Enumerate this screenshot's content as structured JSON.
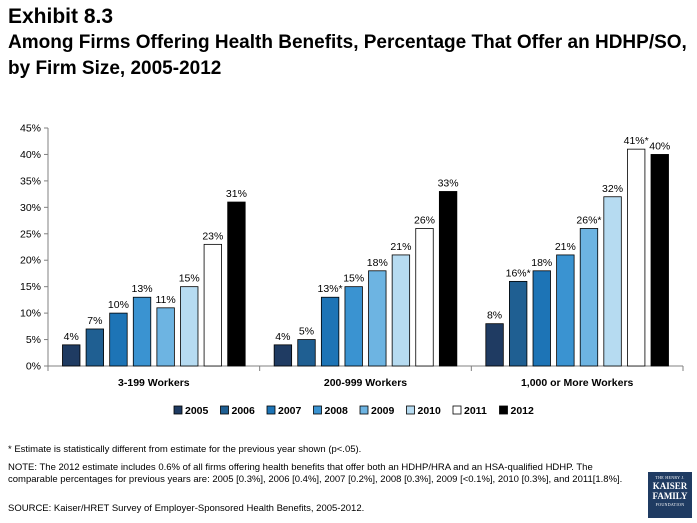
{
  "header": {
    "exhibit": "Exhibit 8.3",
    "title": "Among Firms Offering Health Benefits, Percentage That Offer an HDHP/SO, by Firm Size, 2005-2012"
  },
  "colors": {
    "2005": "#1f3b62",
    "2006": "#1f5f92",
    "2007": "#1d74b6",
    "2008": "#3a93d1",
    "2009": "#6db4e2",
    "2010": "#b6dbf1",
    "2011": "#ffffff",
    "2012": "#000000"
  },
  "chart_data": {
    "type": "bar",
    "categories": [
      "3-199 Workers",
      "200-999 Workers",
      "1,000 or More Workers"
    ],
    "series": [
      {
        "name": "2005",
        "values": [
          4,
          4,
          8
        ],
        "labels": [
          "4%",
          "4%",
          "8%"
        ]
      },
      {
        "name": "2006",
        "values": [
          7,
          5,
          16
        ],
        "labels": [
          "7%",
          "5%",
          "16%*"
        ]
      },
      {
        "name": "2007",
        "values": [
          10,
          13,
          18
        ],
        "labels": [
          "10%",
          "13%*",
          "18%"
        ]
      },
      {
        "name": "2008",
        "values": [
          13,
          15,
          21
        ],
        "labels": [
          "13%",
          "15%",
          "21%"
        ]
      },
      {
        "name": "2009",
        "values": [
          11,
          18,
          26
        ],
        "labels": [
          "11%",
          "18%",
          "26%*"
        ]
      },
      {
        "name": "2010",
        "values": [
          15,
          21,
          32
        ],
        "labels": [
          "15%",
          "21%",
          "32%"
        ]
      },
      {
        "name": "2011",
        "values": [
          23,
          26,
          41
        ],
        "labels": [
          "23%",
          "26%",
          "41%*"
        ]
      },
      {
        "name": "2012",
        "values": [
          31,
          33,
          40
        ],
        "labels": [
          "31%",
          "33%",
          "40%"
        ]
      }
    ],
    "ylim": [
      0,
      45
    ],
    "yticks": [
      0,
      5,
      10,
      15,
      20,
      25,
      30,
      35,
      40,
      45
    ],
    "ytick_labels": [
      "0%",
      "5%",
      "10%",
      "15%",
      "20%",
      "25%",
      "30%",
      "35%",
      "40%",
      "45%"
    ],
    "legend_position": "bottom",
    "grid": false
  },
  "footnotes": {
    "asterisk": "* Estimate is statistically different from estimate for the previous year shown (p<.05).",
    "note": "NOTE: The 2012 estimate includes 0.6% of all firms offering health benefits that offer both an HDHP/HRA and an HSA-qualified HDHP. The comparable percentages for previous years are: 2005 [0.3%], 2006 [0.4%], 2007 [0.2%], 2008 [0.3%], 2009 [<0.1%], 2010 [0.3%], and 2011[1.8%].",
    "source": "SOURCE:  Kaiser/HRET Survey of Employer-Sponsored Health Benefits, 2005-2012."
  },
  "logo": {
    "line1": "THE HENRY J.",
    "line2": "KAISER",
    "line3": "FAMILY",
    "line4": "FOUNDATION"
  }
}
